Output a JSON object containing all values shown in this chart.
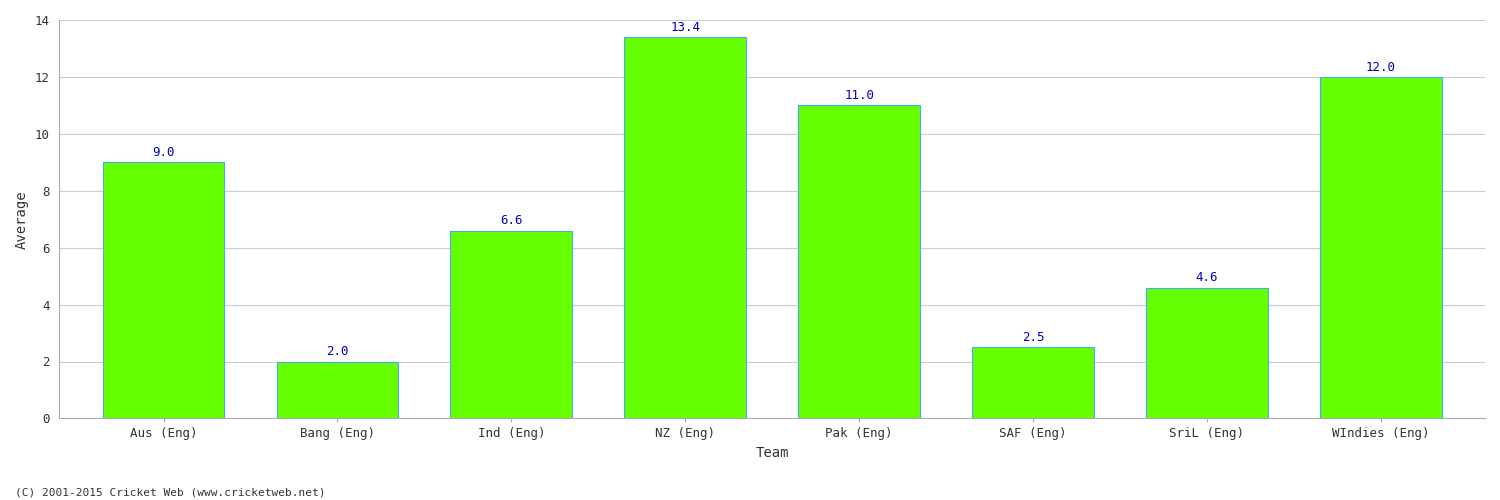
{
  "categories": [
    "Aus (Eng)",
    "Bang (Eng)",
    "Ind (Eng)",
    "NZ (Eng)",
    "Pak (Eng)",
    "SAF (Eng)",
    "SriL (Eng)",
    "WIndies (Eng)"
  ],
  "values": [
    9.0,
    2.0,
    6.6,
    13.4,
    11.0,
    2.5,
    4.6,
    12.0
  ],
  "bar_color": "#66ff00",
  "bar_edge_color": "#44aaff",
  "value_label_color": "#0000bb",
  "value_label_fontsize": 9,
  "xlabel": "Team",
  "ylabel": "Average",
  "xlabel_fontsize": 10,
  "ylabel_fontsize": 10,
  "ylim": [
    0,
    14
  ],
  "yticks": [
    0,
    2,
    4,
    6,
    8,
    10,
    12,
    14
  ],
  "grid_color": "#cccccc",
  "grid_linewidth": 0.8,
  "background_color": "#ffffff",
  "tick_label_fontsize": 9,
  "bar_width": 0.7,
  "footer_text": "(C) 2001-2015 Cricket Web (www.cricketweb.net)",
  "footer_fontsize": 8,
  "footer_color": "#333333"
}
